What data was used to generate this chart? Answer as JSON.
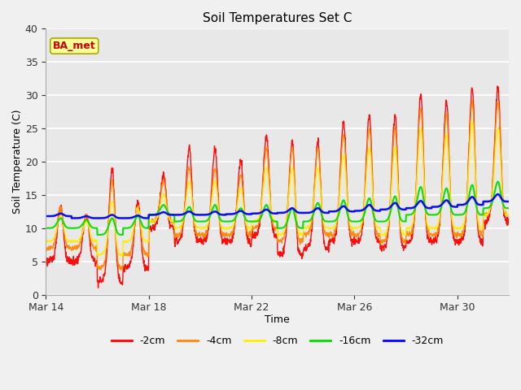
{
  "title": "Soil Temperatures Set C",
  "xlabel": "Time",
  "ylabel": "Soil Temperature (C)",
  "ylim": [
    0,
    40
  ],
  "yticks": [
    0,
    5,
    10,
    15,
    20,
    25,
    30,
    35,
    40
  ],
  "fig_bg_color": "#f0f0f0",
  "plot_bg_color": "#e8e8e8",
  "series_colors": [
    "#ff0000",
    "#ff8800",
    "#ffee00",
    "#00dd00",
    "#0000ff"
  ],
  "series_labels": [
    "-2cm",
    "-4cm",
    "-8cm",
    "-16cm",
    "-32cm"
  ],
  "series_linewidths": [
    1.0,
    1.0,
    1.0,
    1.5,
    1.8
  ],
  "annotation_text": "BA_met",
  "annotation_color": "#cc0000",
  "annotation_bg": "#ffff99",
  "n_days": 18,
  "samples_per_day": 96,
  "xtick_pos": [
    0,
    4,
    8,
    12,
    16
  ],
  "xtick_labels": [
    "Mar 14",
    "Mar 18",
    "Mar 22",
    "Mar 26",
    "Mar 30"
  ]
}
